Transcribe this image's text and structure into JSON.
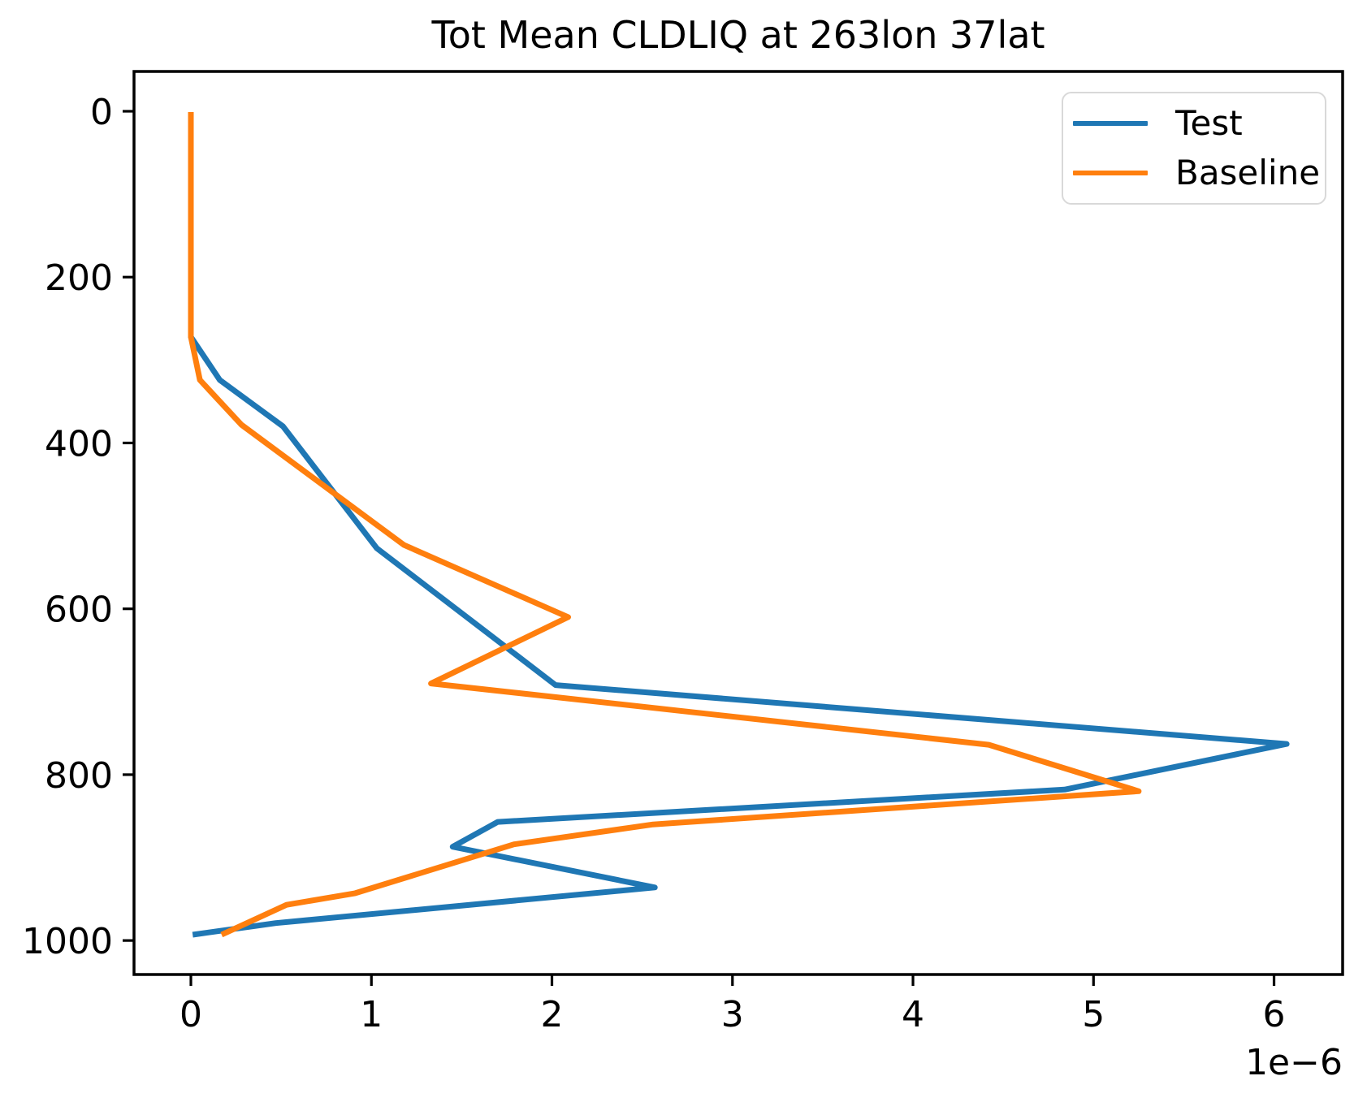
{
  "figure": {
    "background": "#ffffff",
    "text_color": "#000000",
    "spine_color": "#000000"
  },
  "chart_data": {
    "type": "line",
    "title": "Tot Mean CLDLIQ at 263lon 37lat",
    "xlabel": "",
    "ylabel": "",
    "x_offset_label": "1e−6",
    "x_scale_factor": 1e-06,
    "grid": false,
    "y_inverted": true,
    "xlim": [
      -0.315,
      6.38
    ],
    "ylim": [
      -48,
      1041
    ],
    "x_ticks": [
      0,
      1,
      2,
      3,
      4,
      5,
      6
    ],
    "y_ticks": [
      0,
      200,
      400,
      600,
      800,
      1000
    ],
    "legend": {
      "position": "upper right",
      "entries": [
        "Test",
        "Baseline"
      ]
    },
    "series": [
      {
        "name": "Test",
        "color": "#1f77b4",
        "points": [
          [
            0,
            1
          ],
          [
            0,
            272
          ],
          [
            0.16,
            324
          ],
          [
            0.51,
            380
          ],
          [
            1.03,
            527
          ],
          [
            2.02,
            692
          ],
          [
            6.07,
            763
          ],
          [
            4.84,
            818
          ],
          [
            1.7,
            857
          ],
          [
            1.45,
            887
          ],
          [
            2.57,
            936
          ],
          [
            0.47,
            979
          ],
          [
            0.01,
            993
          ]
        ]
      },
      {
        "name": "Baseline",
        "color": "#ff7f0e",
        "points": [
          [
            0,
            1
          ],
          [
            0,
            272
          ],
          [
            0.05,
            324
          ],
          [
            0.28,
            378
          ],
          [
            1.18,
            523
          ],
          [
            2.09,
            610
          ],
          [
            1.33,
            690
          ],
          [
            4.42,
            764
          ],
          [
            5.25,
            820
          ],
          [
            2.56,
            860
          ],
          [
            1.79,
            884
          ],
          [
            0.91,
            943
          ],
          [
            0.53,
            957
          ],
          [
            0.17,
            993
          ]
        ]
      }
    ]
  }
}
